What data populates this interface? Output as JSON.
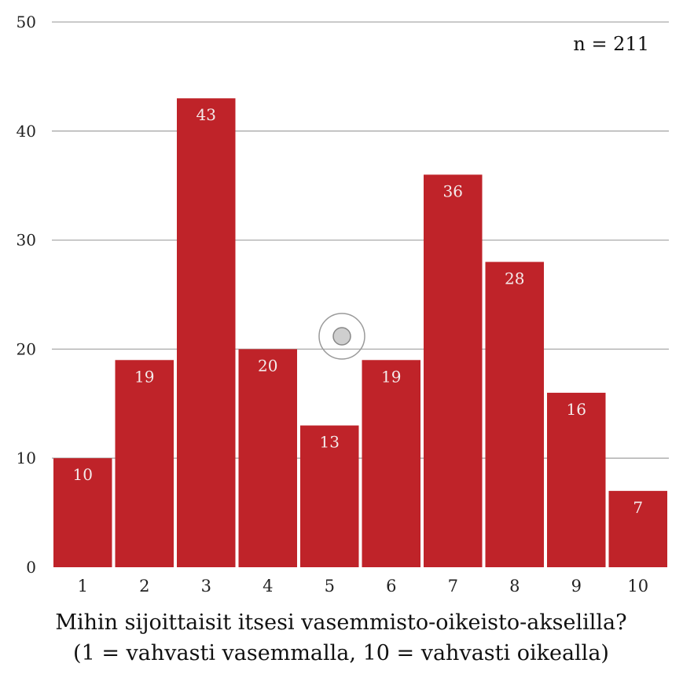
{
  "chart_data": {
    "type": "bar",
    "categories": [
      "1",
      "2",
      "3",
      "4",
      "5",
      "6",
      "7",
      "8",
      "9",
      "10"
    ],
    "values": [
      10,
      19,
      43,
      20,
      13,
      19,
      36,
      28,
      16,
      7
    ],
    "data_labels": [
      "10",
      "19",
      "43",
      "20",
      "13",
      "19",
      "36",
      "28",
      "16",
      "7"
    ],
    "yticks": [
      "0",
      "10",
      "20",
      "30",
      "40",
      "50"
    ],
    "ylim": [
      0,
      50
    ],
    "grid": true,
    "annotation": "n = 211",
    "xlabel_line1": "Mihin sijoittaisit itsesi vasemmisto-oikeisto-akselilla?",
    "xlabel_line2": "(1 = vahvasti vasemmalla, 10 = vahvasti oikealla)",
    "colors": {
      "bar": "#bf2329",
      "grid": "#aaaaaa",
      "label": "#f4ecec"
    }
  }
}
